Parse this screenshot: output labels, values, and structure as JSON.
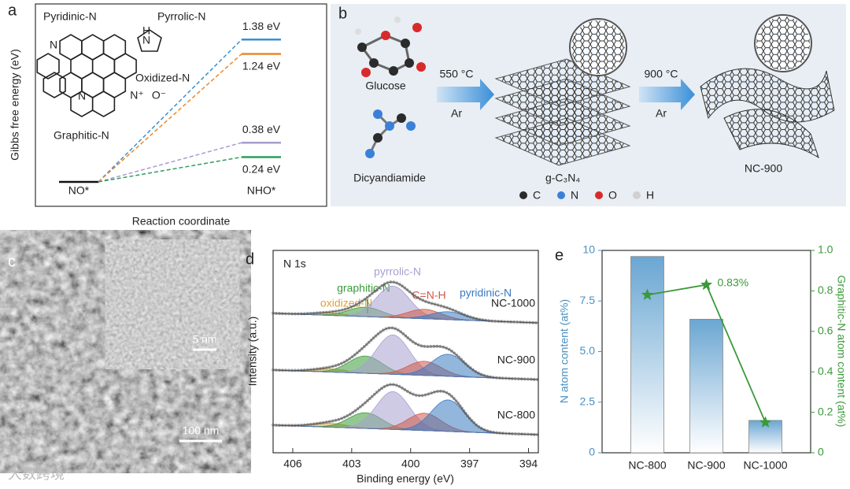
{
  "panel_a": {
    "label": "a",
    "y_label": "Gibbs free energy (eV)",
    "x_label": "Reaction coordinate",
    "start_label": "NO*",
    "end_label": "NHO*",
    "sites": [
      "Pyridinic-N",
      "Pyrrolic-N",
      "Oxidized-N",
      "Graphitic-N"
    ],
    "site_colors": [
      "#2f8fc8",
      "#9a90c8",
      "#e08a2a",
      "#2e9a5a"
    ],
    "atoms": [
      "N",
      "H",
      "N",
      "N",
      "N⁺",
      "O⁻"
    ],
    "values": [
      1.38,
      1.24,
      0.38,
      0.24
    ],
    "value_labels": [
      "1.38 eV",
      "1.24 eV",
      "0.38 eV",
      "0.24 eV"
    ],
    "colors": [
      "#3a90d0",
      "#e8892a",
      "#a89ccc",
      "#2e9e5e"
    ],
    "ylim": [
      0,
      1.5
    ]
  },
  "panel_b": {
    "label": "b",
    "precursors": [
      "Glucose",
      "Dicyandiamide"
    ],
    "step1_temp": "550 °C",
    "step1_gas": "Ar",
    "intermediate": "g-C₃N₄",
    "step2_temp": "900 °C",
    "step2_gas": "Ar",
    "product": "NC-900",
    "legend": [
      "C",
      "N",
      "O",
      "H"
    ],
    "legend_colors": [
      "#2b2b2b",
      "#3a80d8",
      "#d82a2a",
      "#d0d0d0"
    ]
  },
  "panel_c": {
    "label": "c",
    "inset_scale": "5 nm",
    "scale": "100 nm"
  },
  "panel_d": {
    "label": "d",
    "title": "N 1s",
    "y_label": "Intensity (a.u.)",
    "x_label": "Binding energy (eV)",
    "xlim": [
      407,
      393.5
    ],
    "xticks": [
      406,
      403,
      400,
      397,
      394
    ],
    "components": [
      {
        "name": "oxidized-N",
        "color": "#e0a040",
        "center": 404.1
      },
      {
        "name": "graphitic-N",
        "color": "#3a9a3a",
        "center": 402.3
      },
      {
        "name": "pyrrolic-N",
        "color": "#a8a0d0",
        "center": 400.9
      },
      {
        "name": "C=N-H",
        "color": "#d05a4a",
        "center": 399.3
      },
      {
        "name": "pyridinic-N",
        "color": "#3a7ac0",
        "center": 398.1
      }
    ],
    "samples": [
      {
        "name": "NC-1000",
        "heights": [
          3,
          12,
          40,
          12,
          10
        ]
      },
      {
        "name": "NC-900",
        "heights": [
          4,
          22,
          50,
          18,
          28
        ]
      },
      {
        "name": "NC-800",
        "heights": [
          5,
          20,
          48,
          22,
          40
        ]
      }
    ]
  },
  "chart_data": {
    "type": "bar",
    "label": "e",
    "y_label": "N atom content (at%)",
    "y2_label": "Graphitic-N atom content (at%)",
    "categories": [
      "NC-800",
      "NC-900",
      "NC-1000"
    ],
    "ylim": [
      0,
      10
    ],
    "yticks": [
      0,
      2.5,
      {
        "value": 5,
        "label": "5.0"
      },
      7.5,
      10
    ],
    "y2lim": [
      0,
      1
    ],
    "y2ticks": [
      0,
      0.2,
      0.4,
      0.6,
      0.8,
      {
        "value": 1,
        "label": "1.0"
      }
    ],
    "series": [
      {
        "values": [
          9.7,
          6.6,
          1.6
        ],
        "color": "#7fb3d8"
      },
      {
        "values": [
          0.78,
          0.83,
          0.15
        ],
        "color": "#3a9a3a",
        "axis": "y2",
        "value_labels": [
          null,
          "0.83%",
          null
        ]
      }
    ]
  },
  "watermark": "大数跨境"
}
